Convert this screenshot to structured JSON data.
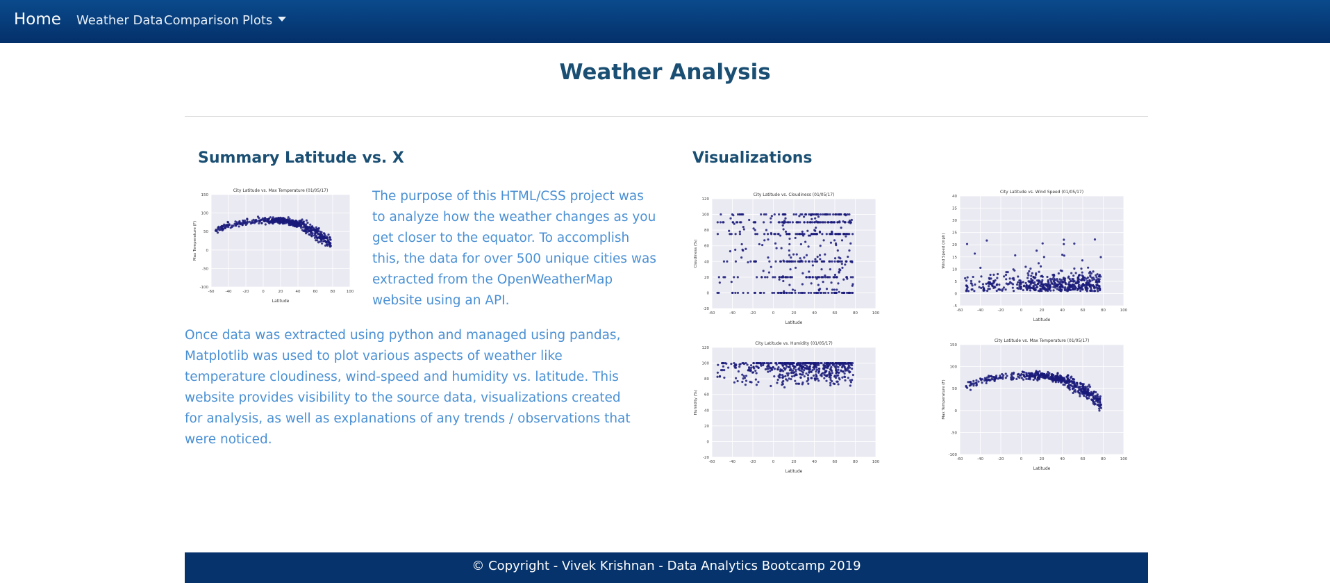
{
  "navbar": {
    "brand": "Home",
    "links": [
      {
        "label": "Weather Data"
      },
      {
        "label": "Comparison"
      },
      {
        "label": "Plots"
      }
    ]
  },
  "page": {
    "title": "Weather Analysis"
  },
  "summary": {
    "heading": "Summary Latitude vs. X",
    "paragraph1": "The purpose of this HTML/CSS project was to analyze how the weather changes as you get closer to the equator. To accomplish this, the data for over 500 unique cities was extracted from the OpenWeatherMap website using an API.",
    "paragraph2": "Once data was extracted using python and managed using pandas, Matplotlib was used to plot various aspects of weather like temperature cloudiness, wind-speed and humidity vs. latitude. This website provides visibility to the source data, visualizations created for analysis, as well as explanations of any trends / observations that were noticed."
  },
  "visualizations": {
    "heading": "Visualizations"
  },
  "footer": {
    "text": "© Copyright - Vivek Krishnan - Data Analytics Bootcamp 2019"
  },
  "colors": {
    "navbar": "#04306a",
    "heading": "#1a4f73",
    "body_text": "#4a90d4",
    "footer": "#06336b",
    "plot_bg": "#eaeaf2",
    "points": "#1a1a7a"
  },
  "chart_data": [
    {
      "id": "summary-temp",
      "type": "scatter",
      "title": "City Latitude vs. Max Temperature (01/05/17)",
      "xlabel": "Latitude",
      "ylabel": "Max Temperature (F)",
      "xlim": [
        -60,
        100
      ],
      "ylim": [
        -100,
        150
      ],
      "xticks": [
        -60,
        -40,
        -20,
        0,
        20,
        40,
        60,
        80,
        100
      ],
      "yticks": [
        -100,
        -50,
        0,
        50,
        100,
        150
      ],
      "grid": true,
      "series": [
        {
          "pattern": "temperature",
          "n": 520
        }
      ]
    },
    {
      "id": "cloudiness",
      "type": "scatter",
      "title": "City Latitude vs. Cloudiness (01/05/17)",
      "xlabel": "Latitude",
      "ylabel": "Cloudiness (%)",
      "xlim": [
        -60,
        100
      ],
      "ylim": [
        -20,
        120
      ],
      "xticks": [
        -60,
        -40,
        -20,
        0,
        20,
        40,
        60,
        80,
        100
      ],
      "yticks": [
        -20,
        0,
        20,
        40,
        60,
        80,
        100,
        120
      ],
      "grid": true,
      "series": [
        {
          "pattern": "cloudiness",
          "n": 520
        }
      ]
    },
    {
      "id": "wind",
      "type": "scatter",
      "title": "City Latitude vs. Wind Speed (01/05/17)",
      "xlabel": "Latitude",
      "ylabel": "Wind Speed (mph)",
      "xlim": [
        -60,
        100
      ],
      "ylim": [
        -5,
        40
      ],
      "xticks": [
        -60,
        -40,
        -20,
        0,
        20,
        40,
        60,
        80,
        100
      ],
      "yticks": [
        -5,
        0,
        5,
        10,
        15,
        20,
        25,
        30,
        35,
        40
      ],
      "grid": true,
      "series": [
        {
          "pattern": "wind",
          "n": 520
        }
      ]
    },
    {
      "id": "humidity",
      "type": "scatter",
      "title": "City Latitude vs. Humidity (01/05/17)",
      "xlabel": "Latitude",
      "ylabel": "Humidity (%)",
      "xlim": [
        -60,
        100
      ],
      "ylim": [
        -20,
        120
      ],
      "xticks": [
        -60,
        -40,
        -20,
        0,
        20,
        40,
        60,
        80,
        100
      ],
      "yticks": [
        -20,
        0,
        20,
        40,
        60,
        80,
        100,
        120
      ],
      "grid": true,
      "series": [
        {
          "pattern": "humidity",
          "n": 520
        }
      ]
    },
    {
      "id": "temp",
      "type": "scatter",
      "title": "City Latitude vs. Max Temperature (01/05/17)",
      "xlabel": "Latitude",
      "ylabel": "Max Temperature (F)",
      "xlim": [
        -60,
        100
      ],
      "ylim": [
        -100,
        150
      ],
      "xticks": [
        -60,
        -40,
        -20,
        0,
        20,
        40,
        60,
        80,
        100
      ],
      "yticks": [
        -100,
        -50,
        0,
        50,
        100,
        150
      ],
      "grid": true,
      "series": [
        {
          "pattern": "temperature",
          "n": 520
        }
      ]
    }
  ]
}
